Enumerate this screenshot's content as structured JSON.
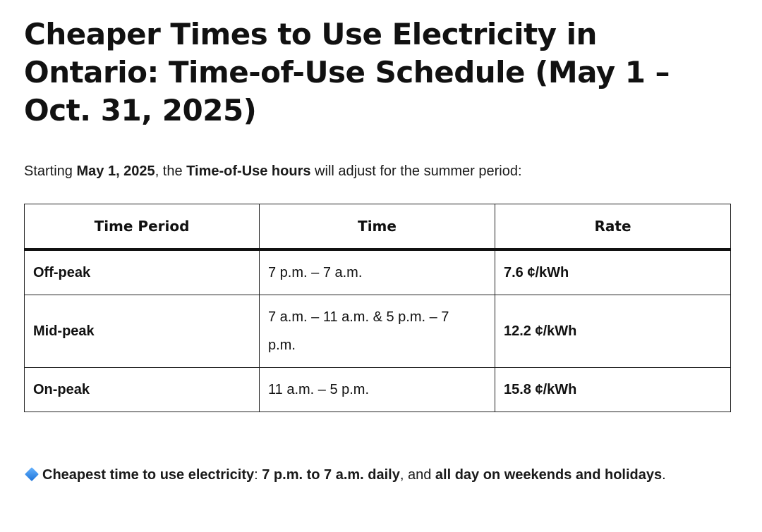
{
  "title": "Cheaper Times to Use Electricity in Ontario: Time-of-Use Schedule (May 1 – Oct. 31, 2025)",
  "intro": {
    "prefix": "Starting ",
    "date": "May 1, 2025",
    "mid": ", the ",
    "term": "Time-of-Use hours",
    "suffix": " will adjust for the summer period:"
  },
  "table": {
    "headers": [
      "Time Period",
      "Time",
      "Rate"
    ],
    "rows": [
      {
        "period": "Off-peak",
        "time": "7 p.m. – 7 a.m.",
        "rate": "7.6 ¢/kWh"
      },
      {
        "period": "Mid-peak",
        "time": "7 a.m. – 11 a.m. & 5 p.m. – 7 p.m.",
        "rate": "12.2 ¢/kWh"
      },
      {
        "period": "On-peak",
        "time": "11 a.m. – 5 p.m.",
        "rate": "15.8 ¢/kWh"
      }
    ]
  },
  "note": {
    "icon": "blue-diamond-icon",
    "label": "Cheapest time to use electricity",
    "sep": ": ",
    "time": "7 p.m. to 7 a.m. daily",
    "mid": ", and ",
    "extra": "all day on weekends and holidays",
    "end": "."
  },
  "colors": {
    "text": "#111111",
    "border": "#222222",
    "diamond": "#2f86e6"
  }
}
